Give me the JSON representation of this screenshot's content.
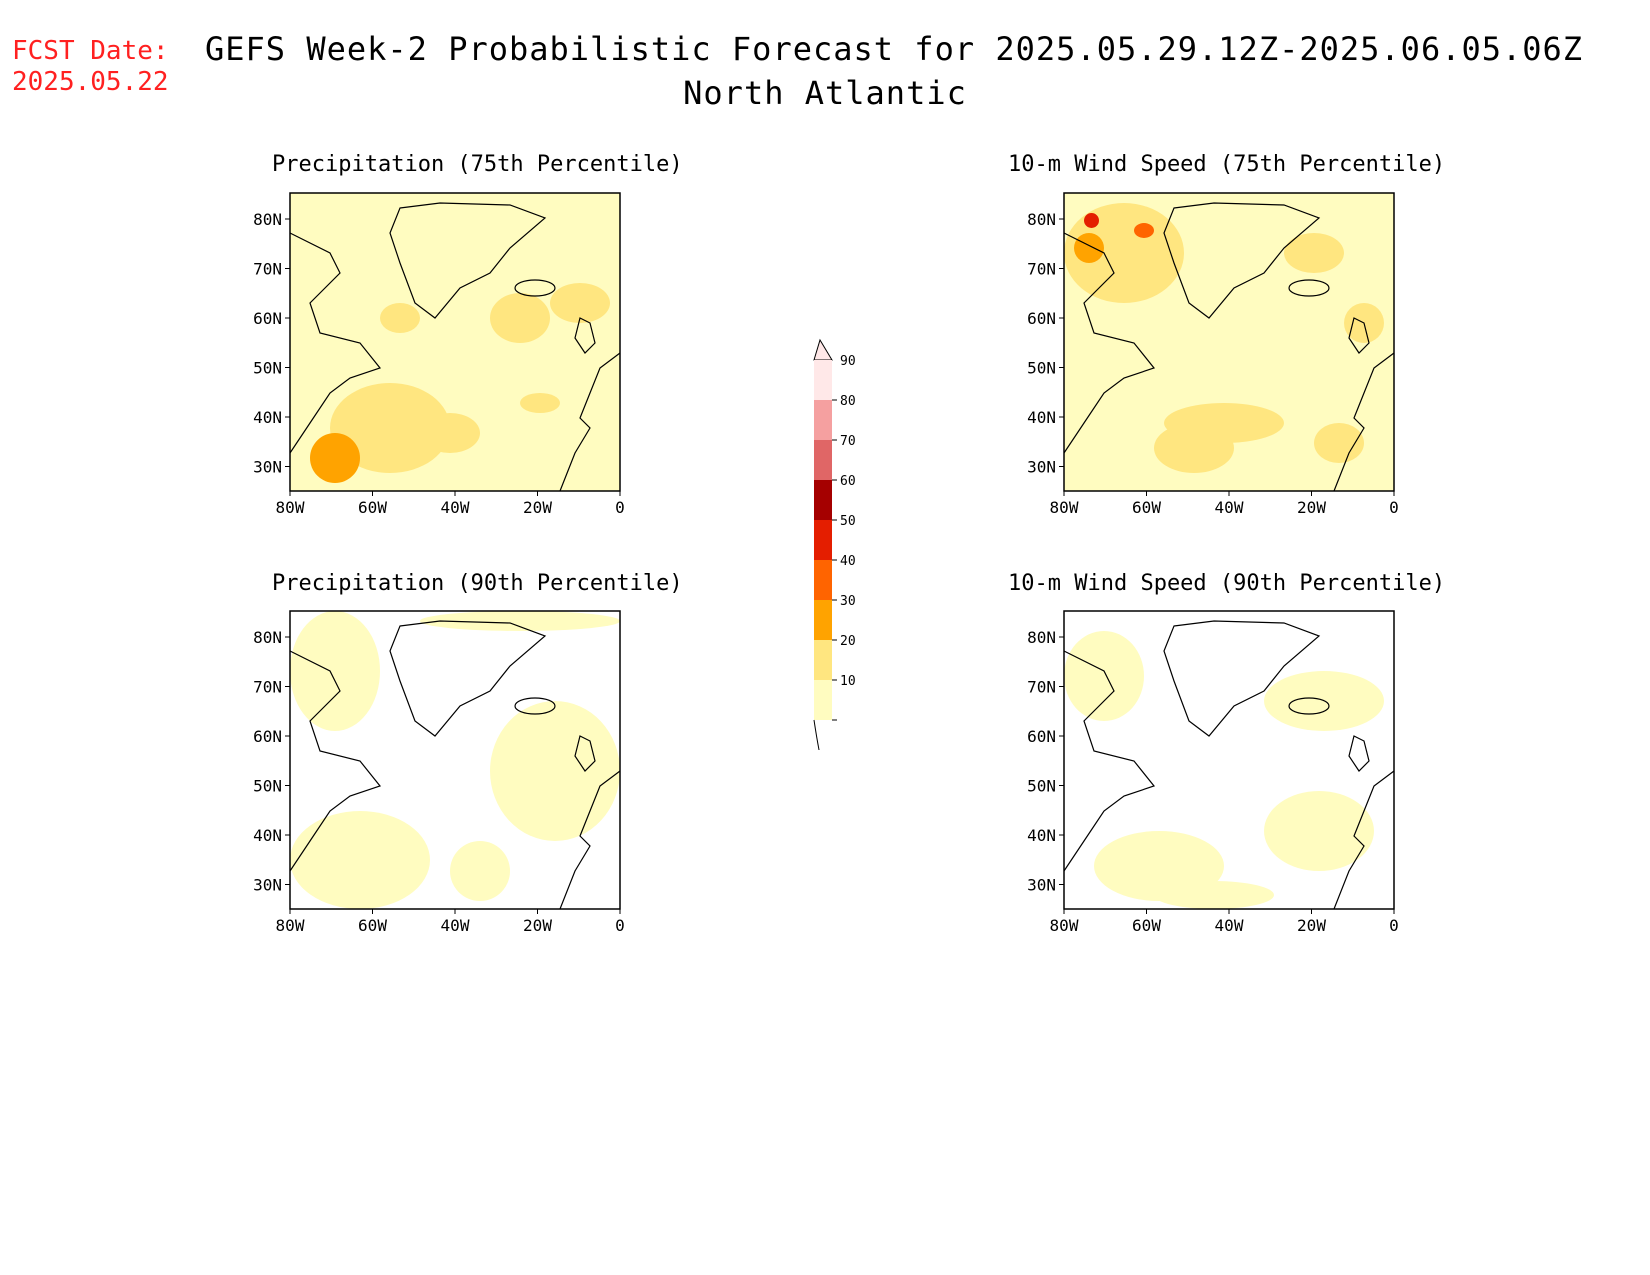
{
  "header": {
    "fcst_label": "FCST Date:",
    "fcst_date": "2025.05.22",
    "title": "GEFS Week-2 Probabilistic Forecast for 2025.05.29.12Z-2025.06.05.06Z",
    "region": "North Atlantic"
  },
  "panels": [
    {
      "id": "precip75",
      "title": "Precipitation (75th Percentile)"
    },
    {
      "id": "wind75",
      "title": "10-m Wind Speed (75th Percentile)"
    },
    {
      "id": "precip90",
      "title": "Precipitation (90th Percentile)"
    },
    {
      "id": "wind90",
      "title": "10-m Wind Speed (90th Percentile)"
    }
  ],
  "axes": {
    "lat_ticks": [
      "80N",
      "70N",
      "60N",
      "50N",
      "40N",
      "30N"
    ],
    "lon_ticks": [
      "80W",
      "60W",
      "40W",
      "20W",
      "0"
    ]
  },
  "colorbar": {
    "levels": [
      "10",
      "20",
      "30",
      "40",
      "50",
      "60",
      "70",
      "80",
      "90"
    ],
    "colors": [
      "#fffcc0",
      "#ffe680",
      "#ffa300",
      "#ff6400",
      "#e41e00",
      "#a50000",
      "#e06666",
      "#f5a0a0",
      "#ffe8e8"
    ]
  }
}
